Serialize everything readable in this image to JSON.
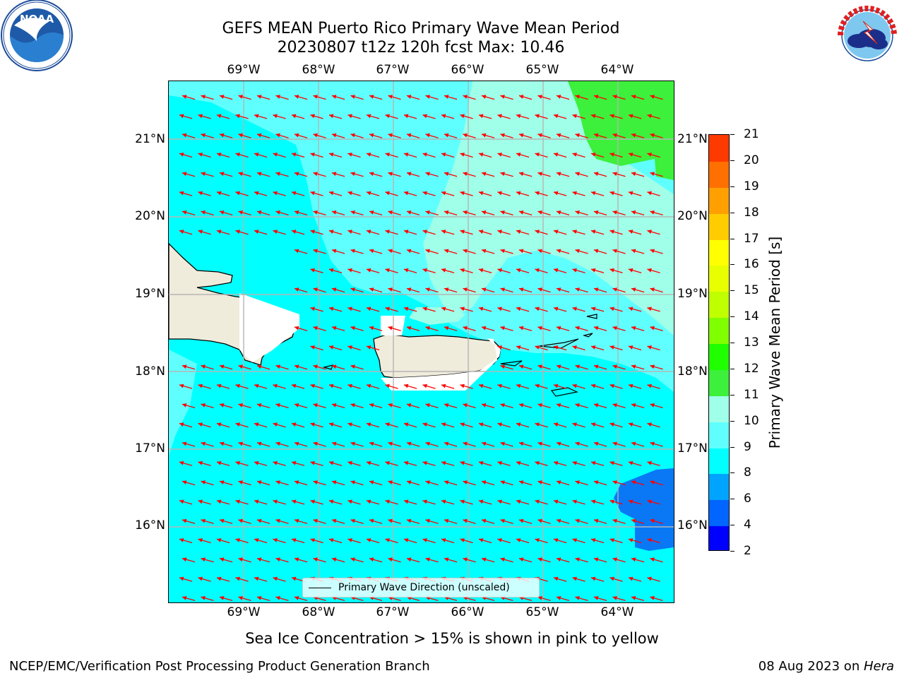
{
  "title": {
    "line1": "GEFS MEAN Puerto Rico Primary Wave Mean Period",
    "line2": "20230807 t12z 120h fcst   Max: 10.46"
  },
  "logos": {
    "left": {
      "text": "NOAA",
      "ring": "NATIONAL OCEANIC AND ATMOSPHERIC ADMINISTRATION · U.S. DEPARTMENT OF COMMERCE"
    },
    "right": {
      "ring": "NATIONAL WEATHER SERVICE"
    }
  },
  "axes": {
    "lon_labels": [
      "69°W",
      "68°W",
      "67°W",
      "66°W",
      "65°W",
      "64°W"
    ],
    "lat_labels": [
      "21°N",
      "20°N",
      "19°N",
      "18°N",
      "17°N",
      "16°N"
    ],
    "lon_range": [
      -70.0,
      -63.25
    ],
    "lat_range": [
      15.0,
      21.75
    ]
  },
  "colorbar": {
    "label": "Primary Wave Mean Period [s]",
    "ticks": [
      "2",
      "4",
      "6",
      "8",
      "9",
      "10",
      "11",
      "12",
      "13",
      "14",
      "15",
      "16",
      "17",
      "18",
      "19",
      "20",
      "21"
    ],
    "colors": [
      "#0000ff",
      "#0066ff",
      "#00a4ff",
      "#00ffff",
      "#60ffff",
      "#a0ffe8",
      "#3cf03c",
      "#20ff00",
      "#80ff00",
      "#c0ff00",
      "#e8ff00",
      "#ffff00",
      "#ffcc00",
      "#ffa000",
      "#ff7000",
      "#ff3a00",
      "#ff0000"
    ]
  },
  "legend": {
    "label": "Primary Wave Direction (unscaled)"
  },
  "chart_data": {
    "type": "heatmap",
    "title": "GEFS MEAN Puerto Rico Primary Wave Mean Period",
    "variable": "Primary Wave Mean Period [s]",
    "max": 10.46,
    "regions": [
      {
        "area": "most of domain",
        "period_s": 7.5
      },
      {
        "area": "north-central offshore",
        "period_s": 8.5
      },
      {
        "area": "northeast corner",
        "period_s": 10.3
      },
      {
        "area": "southeast corner",
        "period_s": 5.5
      }
    ],
    "arrow_direction": "from east-southeast toward west-northwest",
    "arrow_color": "#ff0000"
  },
  "subtitle": "Sea Ice Concentration > 15% is shown in pink to yellow",
  "footer": {
    "left": "NCEP/EMC/Verification Post Processing Product Generation Branch",
    "right_date": "08 Aug 2023 on ",
    "right_host": "Hera"
  }
}
